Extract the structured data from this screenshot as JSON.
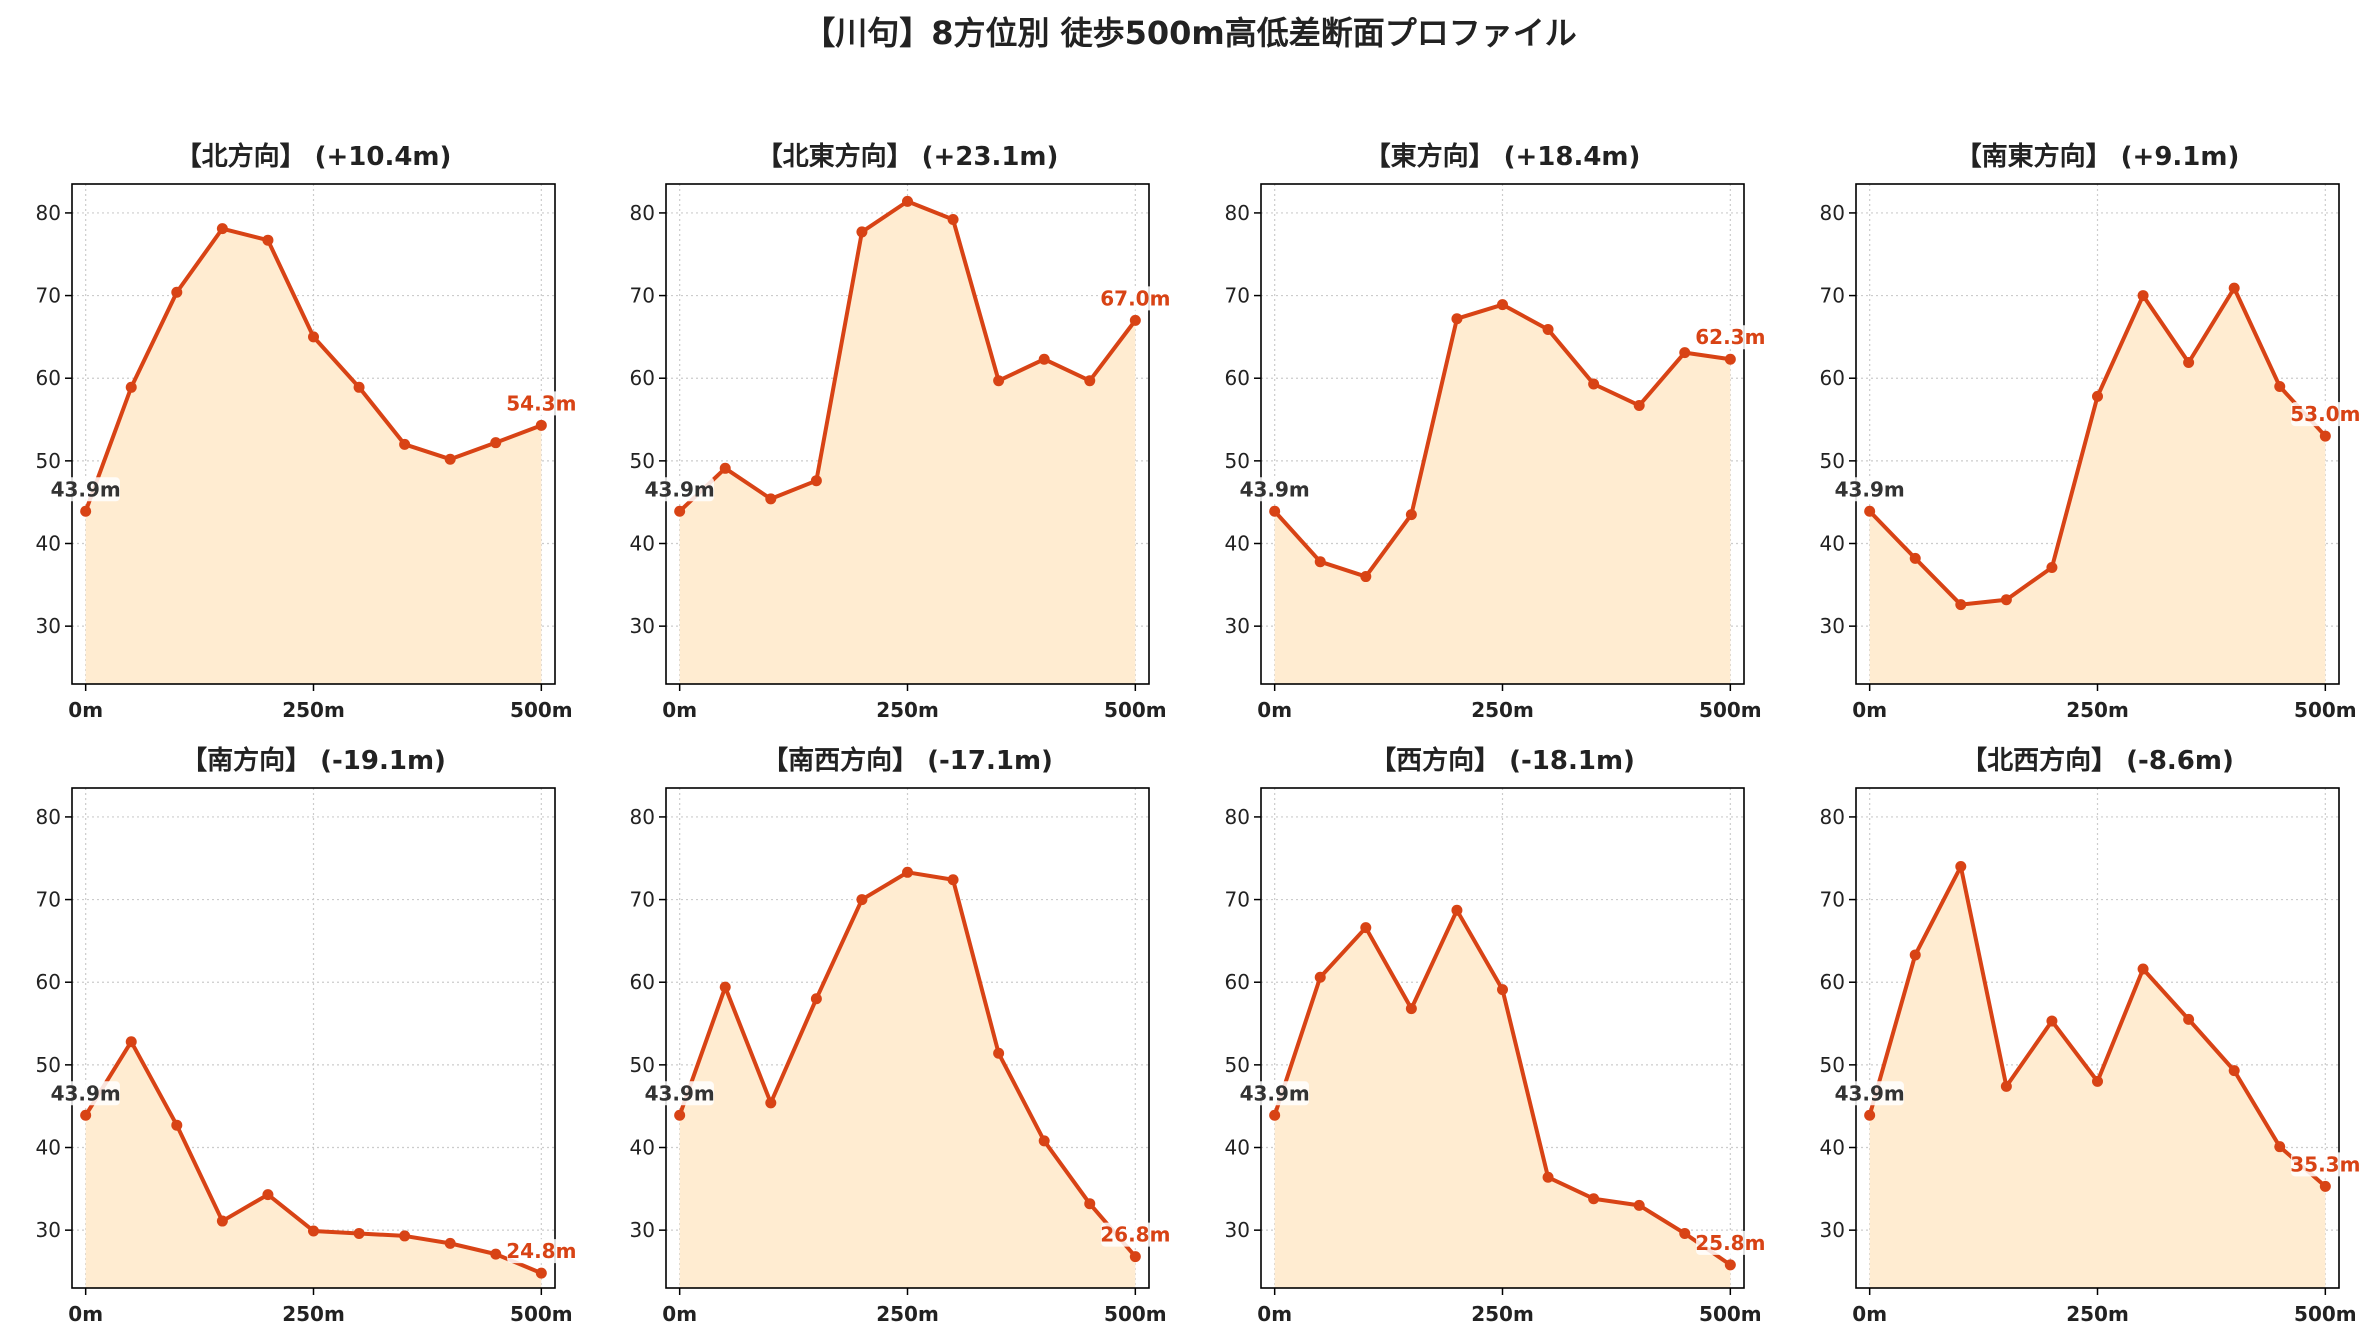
{
  "title": "【川句】8方位別 徒歩500m高低差断面プロファイル",
  "colors": {
    "line": "#d84315",
    "fill": "#ffecd1",
    "start_label": "#333333",
    "end_label": "#d84315",
    "grid": "#cccccc"
  },
  "chart_data": [
    {
      "type": "area",
      "title": "【北方向】 (+10.4m)",
      "x": [
        0,
        50,
        100,
        150,
        200,
        250,
        300,
        350,
        400,
        450,
        500
      ],
      "values": [
        43.9,
        58.9,
        70.4,
        78.1,
        76.7,
        65.0,
        58.9,
        52.0,
        50.2,
        52.2,
        54.3
      ],
      "start_label": "43.9m",
      "end_label": "54.3m",
      "ylim": [
        23,
        83.5
      ],
      "xlim": [
        -15,
        515
      ],
      "yticks": [
        30,
        40,
        50,
        60,
        70,
        80
      ],
      "xticks": [
        0,
        250,
        500
      ],
      "xtick_labels": [
        "0m",
        "250m",
        "500m"
      ],
      "grid": true
    },
    {
      "type": "area",
      "title": "【北東方向】 (+23.1m)",
      "x": [
        0,
        50,
        100,
        150,
        200,
        250,
        300,
        350,
        400,
        450,
        500
      ],
      "values": [
        43.9,
        49.1,
        45.4,
        47.6,
        77.7,
        81.4,
        79.2,
        59.7,
        62.3,
        59.7,
        67.0
      ],
      "start_label": "43.9m",
      "end_label": "67.0m",
      "ylim": [
        23,
        83.5
      ],
      "xlim": [
        -15,
        515
      ],
      "yticks": [
        30,
        40,
        50,
        60,
        70,
        80
      ],
      "xticks": [
        0,
        250,
        500
      ],
      "xtick_labels": [
        "0m",
        "250m",
        "500m"
      ],
      "grid": true
    },
    {
      "type": "area",
      "title": "【東方向】 (+18.4m)",
      "x": [
        0,
        50,
        100,
        150,
        200,
        250,
        300,
        350,
        400,
        450,
        500
      ],
      "values": [
        43.9,
        37.8,
        36.0,
        43.5,
        67.2,
        68.9,
        65.9,
        59.3,
        56.7,
        63.1,
        62.3
      ],
      "start_label": "43.9m",
      "end_label": "62.3m",
      "ylim": [
        23,
        83.5
      ],
      "xlim": [
        -15,
        515
      ],
      "yticks": [
        30,
        40,
        50,
        60,
        70,
        80
      ],
      "xticks": [
        0,
        250,
        500
      ],
      "xtick_labels": [
        "0m",
        "250m",
        "500m"
      ],
      "grid": true
    },
    {
      "type": "area",
      "title": "【南東方向】 (+9.1m)",
      "x": [
        0,
        50,
        100,
        150,
        200,
        250,
        300,
        350,
        400,
        450,
        500
      ],
      "values": [
        43.9,
        38.2,
        32.6,
        33.2,
        37.1,
        57.8,
        70.0,
        61.9,
        70.9,
        59.0,
        53.0
      ],
      "start_label": "43.9m",
      "end_label": "53.0m",
      "ylim": [
        23,
        83.5
      ],
      "xlim": [
        -15,
        515
      ],
      "yticks": [
        30,
        40,
        50,
        60,
        70,
        80
      ],
      "xticks": [
        0,
        250,
        500
      ],
      "xtick_labels": [
        "0m",
        "250m",
        "500m"
      ],
      "grid": true
    },
    {
      "type": "area",
      "title": "【南方向】 (-19.1m)",
      "x": [
        0,
        50,
        100,
        150,
        200,
        250,
        300,
        350,
        400,
        450,
        500
      ],
      "values": [
        43.9,
        52.8,
        42.7,
        31.1,
        34.3,
        29.9,
        29.6,
        29.3,
        28.4,
        27.1,
        24.8
      ],
      "start_label": "43.9m",
      "end_label": "24.8m",
      "ylim": [
        23,
        83.5
      ],
      "xlim": [
        -15,
        515
      ],
      "yticks": [
        30,
        40,
        50,
        60,
        70,
        80
      ],
      "xticks": [
        0,
        250,
        500
      ],
      "xtick_labels": [
        "0m",
        "250m",
        "500m"
      ],
      "grid": true
    },
    {
      "type": "area",
      "title": "【南西方向】 (-17.1m)",
      "x": [
        0,
        50,
        100,
        150,
        200,
        250,
        300,
        350,
        400,
        450,
        500
      ],
      "values": [
        43.9,
        59.4,
        45.4,
        58.0,
        70.0,
        73.3,
        72.4,
        51.4,
        40.8,
        33.2,
        26.8
      ],
      "start_label": "43.9m",
      "end_label": "26.8m",
      "ylim": [
        23,
        83.5
      ],
      "xlim": [
        -15,
        515
      ],
      "yticks": [
        30,
        40,
        50,
        60,
        70,
        80
      ],
      "xticks": [
        0,
        250,
        500
      ],
      "xtick_labels": [
        "0m",
        "250m",
        "500m"
      ],
      "grid": true
    },
    {
      "type": "area",
      "title": "【西方向】 (-18.1m)",
      "x": [
        0,
        50,
        100,
        150,
        200,
        250,
        300,
        350,
        400,
        450,
        500
      ],
      "values": [
        43.9,
        60.6,
        66.6,
        56.8,
        68.7,
        59.1,
        36.4,
        33.8,
        33.0,
        29.6,
        25.8
      ],
      "start_label": "43.9m",
      "end_label": "25.8m",
      "ylim": [
        23,
        83.5
      ],
      "xlim": [
        -15,
        515
      ],
      "yticks": [
        30,
        40,
        50,
        60,
        70,
        80
      ],
      "xticks": [
        0,
        250,
        500
      ],
      "xtick_labels": [
        "0m",
        "250m",
        "500m"
      ],
      "grid": true
    },
    {
      "type": "area",
      "title": "【北西方向】 (-8.6m)",
      "x": [
        0,
        50,
        100,
        150,
        200,
        250,
        300,
        350,
        400,
        450,
        500
      ],
      "values": [
        43.9,
        63.3,
        74.0,
        47.4,
        55.3,
        48.0,
        61.6,
        55.5,
        49.3,
        40.1,
        35.3
      ],
      "start_label": "43.9m",
      "end_label": "35.3m",
      "ylim": [
        23,
        83.5
      ],
      "xlim": [
        -15,
        515
      ],
      "yticks": [
        30,
        40,
        50,
        60,
        70,
        80
      ],
      "xticks": [
        0,
        250,
        500
      ],
      "xtick_labels": [
        "0m",
        "250m",
        "500m"
      ],
      "grid": true
    }
  ]
}
